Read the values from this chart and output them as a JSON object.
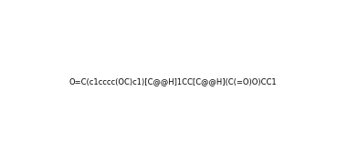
{
  "smiles": "O=C(c1cccc(OC)c1)[C@@H]1CC[C@@H](C(=O)O)CC1",
  "title": "",
  "bg_color": "#ffffff",
  "line_color": "#000000",
  "figsize": [
    3.69,
    1.78
  ],
  "dpi": 100
}
